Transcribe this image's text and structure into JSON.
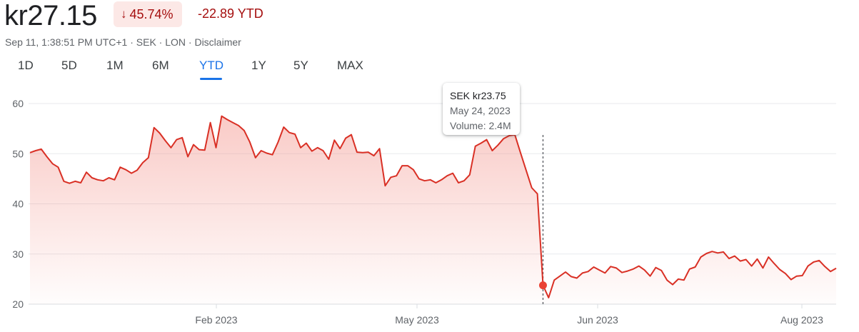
{
  "header": {
    "price": "kr27.15",
    "change_arrow": "↓",
    "change_percent": "45.74%",
    "change_ytd": "-22.89 YTD",
    "meta": "Sep 11, 1:38:51 PM UTC+1 · SEK · LON · Disclaimer",
    "colors": {
      "negative": "#a50e0e",
      "chip_bg": "#fce8e6",
      "accent": "#1a73e8"
    }
  },
  "tabs": [
    {
      "label": "1D"
    },
    {
      "label": "5D"
    },
    {
      "label": "1M"
    },
    {
      "label": "6M"
    },
    {
      "label": "YTD",
      "active": true
    },
    {
      "label": "1Y"
    },
    {
      "label": "5Y"
    },
    {
      "label": "MAX"
    }
  ],
  "tooltip": {
    "price": "SEK kr23.75",
    "date": "May 24, 2023",
    "volume": "Volume: 2.4M"
  },
  "chart_data": {
    "type": "area",
    "title": "",
    "xlabel": "",
    "ylabel": "",
    "ylim": [
      20,
      62
    ],
    "yticks": [
      20,
      30,
      40,
      50,
      60
    ],
    "xtick_labels": [
      "Feb 2023",
      "May 2023",
      "Jun 2023",
      "Aug 2023"
    ],
    "grid": true,
    "line_color": "#d93025",
    "fill_color": "#f28b82",
    "highlight": {
      "index": 91,
      "value": 23.75,
      "label": "May 24, 2023"
    },
    "series": [
      {
        "values": [
          50.2,
          50.6,
          50.9,
          49.4,
          48.0,
          47.3,
          44.5,
          44.1,
          44.5,
          44.2,
          46.3,
          45.2,
          44.8,
          44.6,
          45.2,
          44.8,
          47.3,
          46.8,
          46.1,
          46.7,
          48.2,
          49.2,
          55.2,
          54.1,
          52.6,
          51.2,
          52.8,
          53.2,
          49.4,
          51.8,
          50.8,
          50.7,
          56.2,
          51.2,
          57.5,
          56.8,
          56.2,
          55.6,
          54.6,
          52.3,
          49.2,
          50.6,
          50.1,
          49.8,
          52.3,
          55.3,
          54.2,
          53.9,
          51.2,
          52.1,
          50.5,
          51.2,
          50.6,
          48.9,
          52.7,
          51.0,
          53.1,
          53.8,
          50.3,
          50.2,
          50.3,
          49.6,
          51.0,
          43.6,
          45.3,
          45.6,
          47.6,
          47.6,
          46.8,
          45.0,
          44.6,
          44.8,
          44.2,
          44.8,
          45.6,
          46.1,
          44.2,
          44.6,
          45.8,
          51.5,
          52.1,
          52.8,
          50.6,
          51.7,
          53.0,
          53.6,
          53.8,
          50.2,
          46.7,
          43.2,
          42.0,
          23.75,
          21.3,
          24.8,
          25.6,
          26.4,
          25.5,
          25.2,
          26.2,
          26.5,
          27.4,
          26.8,
          26.2,
          27.5,
          27.2,
          26.3,
          26.6,
          27.0,
          27.6,
          26.8,
          25.6,
          27.3,
          26.7,
          24.8,
          23.9,
          25.0,
          24.8,
          27.0,
          27.4,
          29.4,
          30.1,
          30.5,
          30.2,
          30.4,
          29.1,
          29.6,
          28.6,
          28.9,
          27.6,
          29.0,
          27.2,
          29.4,
          28.1,
          26.9,
          26.1,
          24.9,
          25.6,
          25.7,
          27.6,
          28.4,
          28.7,
          27.5,
          26.5,
          27.15
        ]
      }
    ]
  }
}
